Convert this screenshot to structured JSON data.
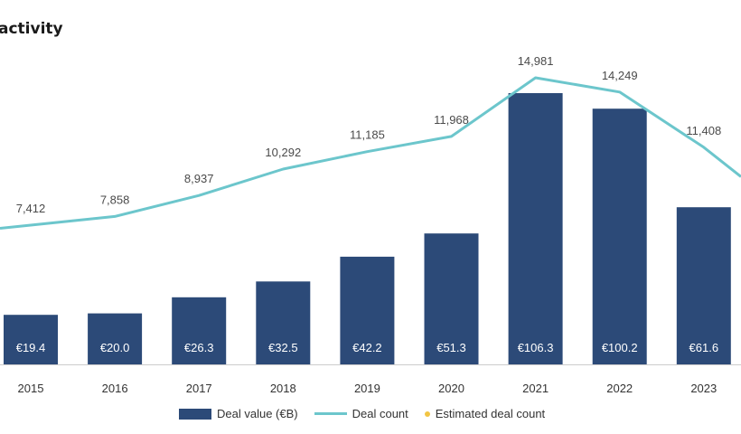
{
  "colors": {
    "bar": "#2c4a78",
    "line": "#6cc6cc",
    "estimate_dot": "#f2c544",
    "axis": "#cccccc"
  },
  "chart_data": {
    "type": "bar",
    "title": "activity",
    "categories": [
      "2015",
      "2016",
      "2017",
      "2018",
      "2019",
      "2020",
      "2021",
      "2022",
      "2023"
    ],
    "series": [
      {
        "name": "Deal value (€B)",
        "type": "bar",
        "values": [
          19.4,
          20.0,
          26.3,
          32.5,
          42.2,
          51.3,
          106.3,
          100.2,
          61.6
        ],
        "labels": [
          "€19.4",
          "€20.0",
          "€26.3",
          "€32.5",
          "€42.2",
          "€51.3",
          "€106.3",
          "€100.2",
          "€61.6"
        ]
      },
      {
        "name": "Deal count",
        "type": "line",
        "values": [
          7412,
          7858,
          8937,
          10292,
          11185,
          11968,
          14981,
          14249,
          11408
        ],
        "labels": [
          "7,412",
          "7,858",
          "8,937",
          "10,292",
          "11,185",
          "11,968",
          "14,981",
          "14,249",
          "11,408"
        ]
      }
    ],
    "legend": {
      "position": "bottom",
      "entries": [
        "Deal value (€B)",
        "Deal count",
        "Estimated deal count"
      ]
    },
    "xlabel": "",
    "ylabel": "",
    "grid": false
  }
}
